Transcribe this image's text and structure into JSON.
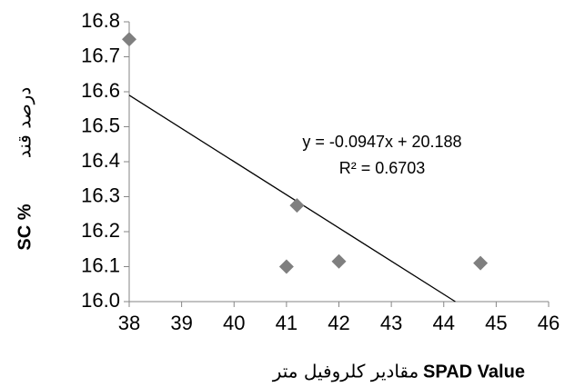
{
  "chart_data": {
    "type": "scatter",
    "x": [
      38,
      41.2,
      41,
      42,
      44.7
    ],
    "series": [
      {
        "color": "#7f7f7f",
        "values": [
          16.75,
          16.275,
          16.1,
          16.115,
          16.11
        ]
      }
    ],
    "trendline": {
      "color": "#000000",
      "x": [
        38,
        44.22
      ],
      "y": [
        16.59,
        16.0
      ]
    },
    "annotations": [
      "y = -0.0947x + 20.188",
      "R² = 0.6703"
    ],
    "xlabel": "SPAD Value",
    "xlabel_arabic": "مقادير كلروفيل متر",
    "ylabel": "SC %",
    "ylabel_arabic": "درصد قند",
    "xlim": [
      38,
      46
    ],
    "xticks": [
      38,
      39,
      40,
      41,
      42,
      43,
      44,
      45,
      46
    ],
    "ylim": [
      16,
      16.8
    ],
    "yticks": [
      {
        "value": 16,
        "label": "16.0"
      },
      16.1,
      16.2,
      16.3,
      16.4,
      16.5,
      16.6,
      16.7,
      16.8
    ],
    "grid": false
  }
}
